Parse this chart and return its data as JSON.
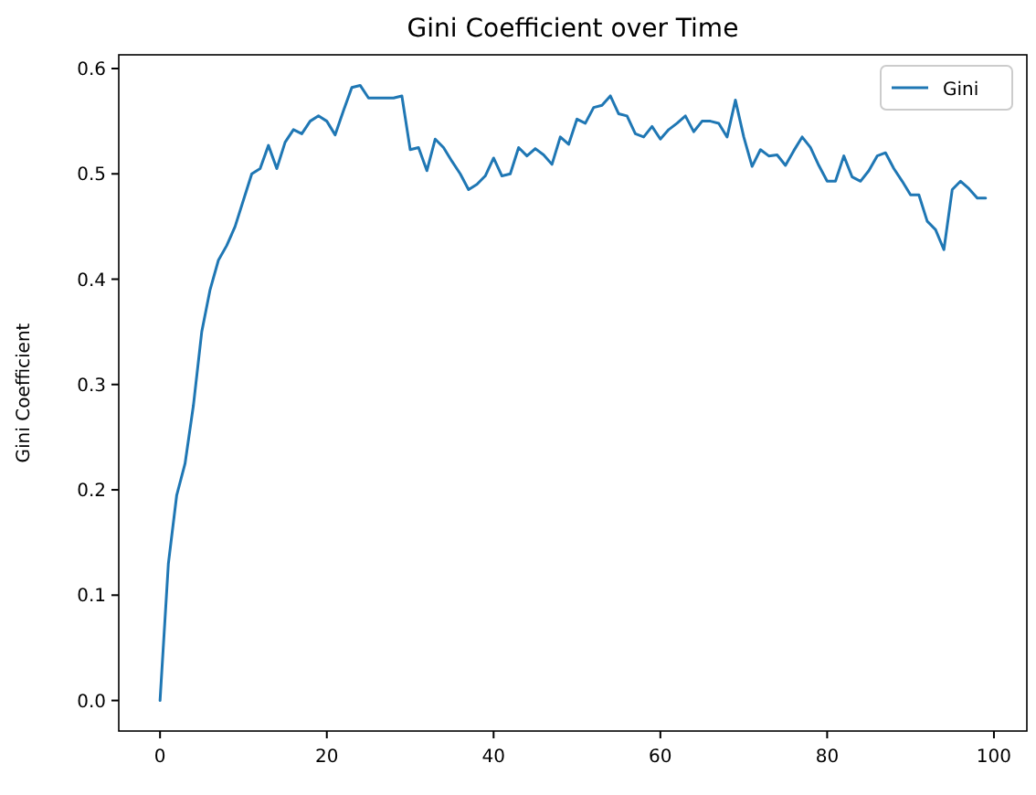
{
  "chart_data": {
    "type": "line",
    "title": "Gini Coefficient over Time",
    "ylabel": "Gini Coefficient",
    "x": [
      0,
      1,
      2,
      3,
      4,
      5,
      6,
      7,
      8,
      9,
      10,
      11,
      12,
      13,
      14,
      15,
      16,
      17,
      18,
      19,
      20,
      21,
      22,
      23,
      24,
      25,
      26,
      27,
      28,
      29,
      30,
      31,
      32,
      33,
      34,
      35,
      36,
      37,
      38,
      39,
      40,
      41,
      42,
      43,
      44,
      45,
      46,
      47,
      48,
      49,
      50,
      51,
      52,
      53,
      54,
      55,
      56,
      57,
      58,
      59,
      60,
      61,
      62,
      63,
      64,
      65,
      66,
      67,
      68,
      69,
      70,
      71,
      72,
      73,
      74,
      75,
      76,
      77,
      78,
      79,
      80,
      81,
      82,
      83,
      84,
      85,
      86,
      87,
      88,
      89,
      90,
      91,
      92,
      93,
      94,
      95,
      96,
      97,
      98,
      99
    ],
    "series": [
      {
        "name": "Gini",
        "color": "#1f77b4",
        "values": [
          0.0,
          0.13,
          0.195,
          0.225,
          0.28,
          0.35,
          0.39,
          0.418,
          0.432,
          0.45,
          0.475,
          0.5,
          0.505,
          0.527,
          0.505,
          0.53,
          0.542,
          0.538,
          0.55,
          0.555,
          0.55,
          0.537,
          0.56,
          0.582,
          0.584,
          0.572,
          0.572,
          0.572,
          0.572,
          0.574,
          0.523,
          0.525,
          0.503,
          0.533,
          0.525,
          0.512,
          0.5,
          0.485,
          0.49,
          0.498,
          0.515,
          0.498,
          0.5,
          0.525,
          0.517,
          0.524,
          0.518,
          0.509,
          0.535,
          0.528,
          0.552,
          0.548,
          0.563,
          0.565,
          0.574,
          0.557,
          0.555,
          0.538,
          0.535,
          0.545,
          0.533,
          0.542,
          0.548,
          0.555,
          0.54,
          0.55,
          0.55,
          0.548,
          0.535,
          0.57,
          0.535,
          0.507,
          0.523,
          0.517,
          0.518,
          0.508,
          0.522,
          0.535,
          0.525,
          0.508,
          0.493,
          0.493,
          0.517,
          0.497,
          0.493,
          0.503,
          0.517,
          0.52,
          0.505,
          0.493,
          0.48,
          0.48,
          0.455,
          0.447,
          0.428,
          0.485,
          0.493,
          0.486,
          0.477,
          0.477
        ]
      }
    ],
    "xlim": [
      -4.95,
      103.95
    ],
    "xticks": [
      0,
      20,
      40,
      60,
      80,
      100
    ],
    "ylim": [
      -0.029,
      0.613
    ],
    "yticks": [
      {
        "value": 0,
        "label": "0.0"
      },
      {
        "value": 0.1,
        "label": "0.1"
      },
      {
        "value": 0.2,
        "label": "0.2"
      },
      {
        "value": 0.3,
        "label": "0.3"
      },
      {
        "value": 0.4,
        "label": "0.4"
      },
      {
        "value": 0.5,
        "label": "0.5"
      },
      {
        "value": 0.6,
        "label": "0.6"
      }
    ],
    "grid": false,
    "legend": "top right",
    "marker": "none",
    "line_style": "solid"
  }
}
